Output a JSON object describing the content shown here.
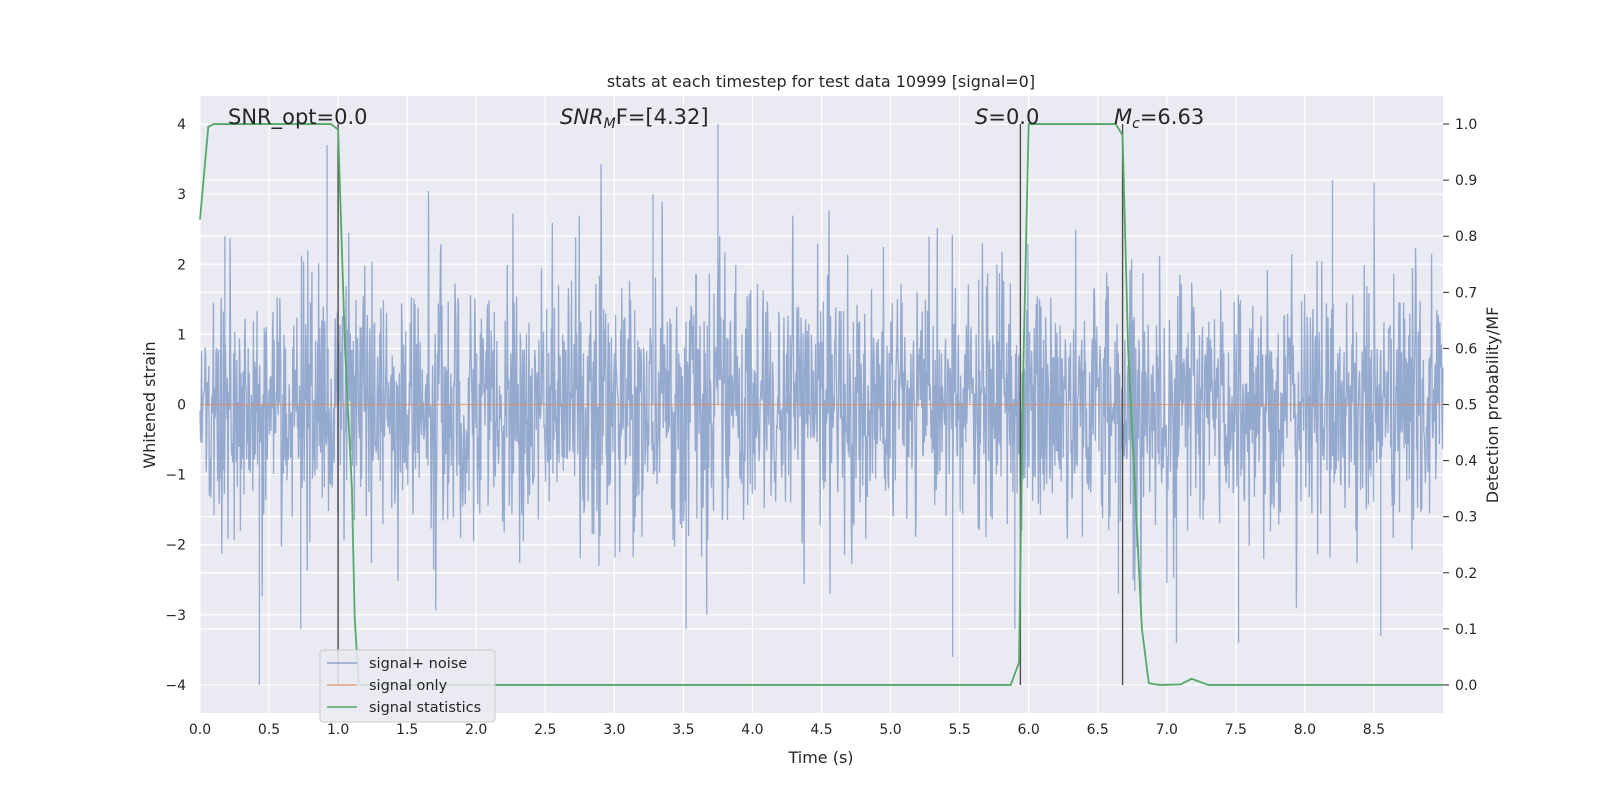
{
  "chart_data": {
    "type": "line",
    "title": "stats at each timestep for test data 10999 [signal=0]",
    "xlabel": "Time (s)",
    "ylabel": "Whitened strain",
    "y2label": "Detection probability/MF",
    "xlim": [
      0,
      9.0
    ],
    "ylim": [
      -4.4,
      4.4
    ],
    "y2lim": [
      -0.05,
      1.05
    ],
    "xticks": [
      "0.0",
      "0.5",
      "1.0",
      "1.5",
      "2.0",
      "2.5",
      "3.0",
      "3.5",
      "4.0",
      "4.5",
      "5.0",
      "5.5",
      "6.0",
      "6.5",
      "7.0",
      "7.5",
      "8.0",
      "8.5"
    ],
    "yticks": [
      "4",
      "3",
      "2",
      "1",
      "0",
      "−1",
      "−2",
      "−3",
      "−4"
    ],
    "y2ticks": [
      "1.0",
      "0.9",
      "0.8",
      "0.7",
      "0.6",
      "0.5",
      "0.4",
      "0.3",
      "0.2",
      "0.1",
      "0.0"
    ],
    "grid": true,
    "legend_position": "lower-left",
    "annotations": {
      "snr_opt": "SNR_opt=0.0",
      "snr_mf_main": "SNR",
      "snr_mf_sub": "M",
      "snr_mf_rest": "F=[4.32]",
      "s_main": "S",
      "s_rest": "=0.0",
      "mc_main": "M",
      "mc_sub": "c",
      "mc_rest": "=6.63"
    },
    "vertical_markers_x": [
      1.0,
      5.94,
      6.68
    ],
    "series": [
      {
        "name": "signal+ noise",
        "color": "#4c72b0",
        "description_kind": "noise",
        "amplitude_envelope": {
          "inner_sigma": 0.9,
          "max_abs": 4.0
        },
        "spikes": [
          {
            "x": 0.18,
            "y": 2.4
          },
          {
            "x": 0.43,
            "y": -4.0
          },
          {
            "x": 0.73,
            "y": -3.2
          },
          {
            "x": 0.92,
            "y": 3.7
          },
          {
            "x": 3.52,
            "y": -3.2
          },
          {
            "x": 3.75,
            "y": 4.0
          },
          {
            "x": 3.28,
            "y": 3.0
          },
          {
            "x": 5.45,
            "y": -3.6
          },
          {
            "x": 7.07,
            "y": -3.4
          },
          {
            "x": 7.52,
            "y": -3.4
          },
          {
            "x": 8.2,
            "y": 3.2
          },
          {
            "x": 8.55,
            "y": -3.3
          },
          {
            "x": 5.9,
            "y": -3.2
          },
          {
            "x": 6.65,
            "y": -2.7
          }
        ]
      },
      {
        "name": "signal only",
        "color": "#dd8452",
        "x": [
          0,
          9.0
        ],
        "y": [
          0,
          0
        ]
      },
      {
        "name": "signal statistics",
        "color": "#55a868",
        "axis": "right",
        "x": [
          0.0,
          0.06,
          0.1,
          0.2,
          0.5,
          0.8,
          0.95,
          1.0,
          1.05,
          1.1,
          1.12,
          1.15,
          1.2,
          2.0,
          3.0,
          4.0,
          5.0,
          5.5,
          5.87,
          5.93,
          5.96,
          6.0,
          6.5,
          6.63,
          6.68,
          6.72,
          6.78,
          6.82,
          6.87,
          6.95,
          7.1,
          7.18,
          7.3,
          8.0,
          9.0
        ],
        "y": [
          0.83,
          0.995,
          1.0,
          1.0,
          1.0,
          1.0,
          1.0,
          0.99,
          0.6,
          0.35,
          0.12,
          0.0,
          0.0,
          0.0,
          0.0,
          0.0,
          0.0,
          0.0,
          0.0,
          0.04,
          0.55,
          1.0,
          1.0,
          1.0,
          0.98,
          0.6,
          0.3,
          0.1,
          0.003,
          0.0,
          0.001,
          0.011,
          0.0,
          0.0,
          0.0
        ]
      }
    ]
  },
  "colors": {
    "background": "#eaeaf2",
    "grid": "#ffffff",
    "vline": "#4d4d4d"
  }
}
